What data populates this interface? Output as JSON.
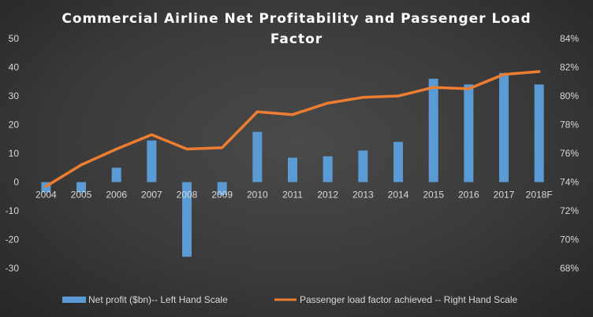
{
  "chart_data": {
    "type": "bar+line",
    "title_line1": "Commercial Airline Net Profitability and Passenger Load",
    "title_line2": "Factor",
    "categories": [
      "2004",
      "2005",
      "2006",
      "2007",
      "2008",
      "2009",
      "2010",
      "2011",
      "2012",
      "2013",
      "2014",
      "2015",
      "2016",
      "2017",
      "2018F"
    ],
    "series": [
      {
        "name": "Net profit ($bn)-- Left Hand Scale",
        "type": "bar",
        "axis": "left",
        "color": "#5b9bd5",
        "values": [
          -3.5,
          -3.5,
          5,
          14.5,
          -26,
          -4.5,
          17.5,
          8.5,
          9,
          11,
          14,
          36,
          34,
          38,
          34
        ]
      },
      {
        "name": "Passenger load factor achieved -- Right Hand Scale",
        "type": "line",
        "axis": "right",
        "color": "#ed7d31",
        "values": [
          73.7,
          75.2,
          76.3,
          77.3,
          76.3,
          76.4,
          78.9,
          78.7,
          79.5,
          79.9,
          80.0,
          80.6,
          80.5,
          81.5,
          81.7
        ]
      }
    ],
    "left_axis": {
      "min": -30,
      "max": 50,
      "step": 10,
      "ticks": [
        "-30",
        "-20",
        "-10",
        "0",
        "10",
        "20",
        "30",
        "40",
        "50"
      ]
    },
    "right_axis": {
      "min": 68,
      "max": 84,
      "step": 2,
      "ticks": [
        "68%",
        "70%",
        "72%",
        "74%",
        "76%",
        "78%",
        "80%",
        "82%",
        "84%"
      ]
    },
    "legend_position": "bottom",
    "legend": {
      "bar_label": "Net profit  ($bn)-- Left Hand Scale",
      "line_label": "Passenger load factor achieved -- Right Hand Scale"
    }
  }
}
